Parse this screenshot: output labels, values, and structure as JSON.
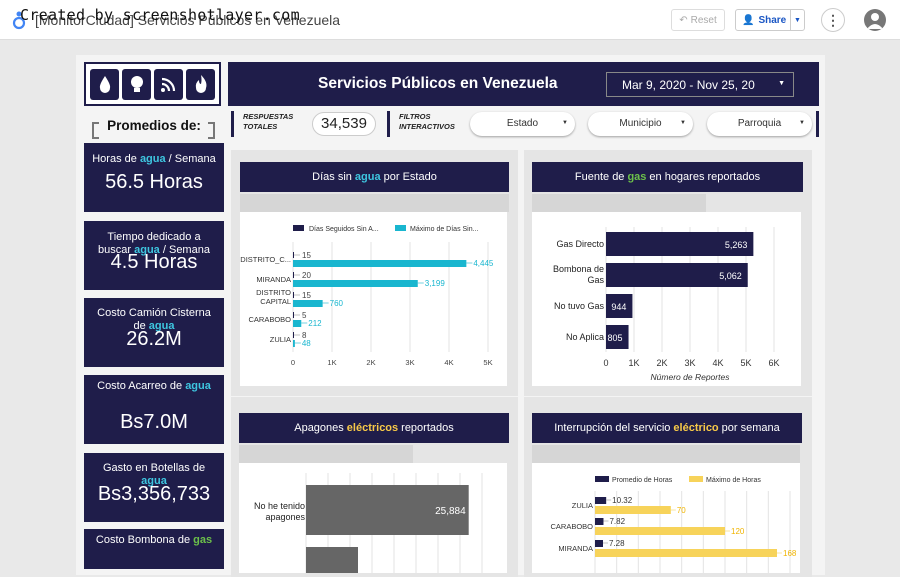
{
  "watermark": "Created by screenshotlayer.com",
  "topbar": {
    "doc_title": "[MonitorCiudad] Servicios Públicos en Venezuela",
    "reset_label": "Reset",
    "share_label": "Share"
  },
  "banner": {
    "title": "Servicios Públicos en Venezuela",
    "date_range": "Mar 9, 2020 - Nov 25, 20"
  },
  "sidebar": {
    "heading": "Promedios de:",
    "kpis": [
      {
        "pre": "Horas de ",
        "hl": "agua",
        "post": " / Semana",
        "value": "56.5 Horas"
      },
      {
        "pre": "Tiempo dedicado a buscar ",
        "hl": "agua",
        "post": " / Semana",
        "value": "4.5 Horas"
      },
      {
        "pre": "Costo Camión Cisterna de ",
        "hl": "agua",
        "post": "",
        "value": "26.2M"
      },
      {
        "pre": "Costo Acarreo de ",
        "hl": "agua",
        "post": "",
        "value": "Bs7.0M"
      },
      {
        "pre": "Gasto en Botellas de ",
        "hl": "agua",
        "post": "",
        "value": "Bs3,356,733"
      },
      {
        "pre": "Costo Bombona de ",
        "hl": "gas",
        "post": "",
        "value": ""
      }
    ]
  },
  "stats": {
    "respuestas_label": "RESPUESTAS TOTALES",
    "respuestas_value": "34,539",
    "filtros_label": "FILTROS INTERACTIVOS",
    "filters": [
      "Estado",
      "Municipio",
      "Parroquia"
    ]
  },
  "panels": {
    "p1": {
      "t_pre": "Días sin ",
      "t_hl": "agua",
      "t_post": " por Estado"
    },
    "p2": {
      "t_pre": "Fuente de ",
      "t_hl": "gas",
      "t_post": " en hogares reportados"
    },
    "p3": {
      "t_pre": "Apagones ",
      "t_hl": "eléctricos",
      "t_post": " reportados"
    },
    "p4": {
      "t_pre": "Interrupción del servicio ",
      "t_hl": "eléctrico",
      "t_post": " por semana"
    }
  },
  "colors": {
    "navy": "#1f1d4a",
    "cyan": "#19b6cf",
    "yellow": "#f7d35a",
    "gray": "#666666"
  },
  "chart_data": [
    {
      "type": "bar",
      "orientation": "horizontal",
      "title": "Días sin agua por Estado",
      "categories": [
        "DISTRITO_C...",
        "MIRANDA",
        "DISTRITO CAPITAL",
        "CARABOBO",
        "ZULIA"
      ],
      "series": [
        {
          "name": "Días Seguidos Sin A...",
          "values": [
            15,
            20,
            15,
            5,
            8
          ]
        },
        {
          "name": "Máximo de Días Sin...",
          "values": [
            4445,
            3199,
            760,
            212,
            48
          ]
        }
      ],
      "xlim": [
        0,
        5000
      ],
      "xticks": [
        "0",
        "1K",
        "2K",
        "3K",
        "4K",
        "5K"
      ],
      "legend": "top"
    },
    {
      "type": "bar",
      "orientation": "horizontal",
      "title": "Fuente de gas en hogares reportados",
      "categories": [
        "Gas Directo",
        "Bombona de Gas",
        "No tuvo Gas",
        "No Aplica"
      ],
      "values": [
        5263,
        5062,
        944,
        805
      ],
      "value_labels": [
        "5,263",
        "5,062",
        "944",
        "805"
      ],
      "xlim": [
        0,
        6000
      ],
      "xticks": [
        "0",
        "1K",
        "2K",
        "3K",
        "4K",
        "5K",
        "6K"
      ],
      "xlabel": "Número de Reportes"
    },
    {
      "type": "bar",
      "orientation": "horizontal",
      "title": "Apagones eléctricos reportados",
      "categories": [
        "No he tenido apagones"
      ],
      "values": [
        25884
      ],
      "value_labels": [
        "25,884"
      ]
    },
    {
      "type": "bar",
      "orientation": "horizontal",
      "title": "Interrupción del servicio eléctrico por semana",
      "categories": [
        "ZULIA",
        "CARABOBO",
        "MIRANDA"
      ],
      "series": [
        {
          "name": "Promedio de Horas",
          "values": [
            10.32,
            7.82,
            7.28
          ]
        },
        {
          "name": "Máximo de Horas",
          "values": [
            70,
            120,
            168
          ]
        }
      ],
      "legend": "top"
    }
  ]
}
